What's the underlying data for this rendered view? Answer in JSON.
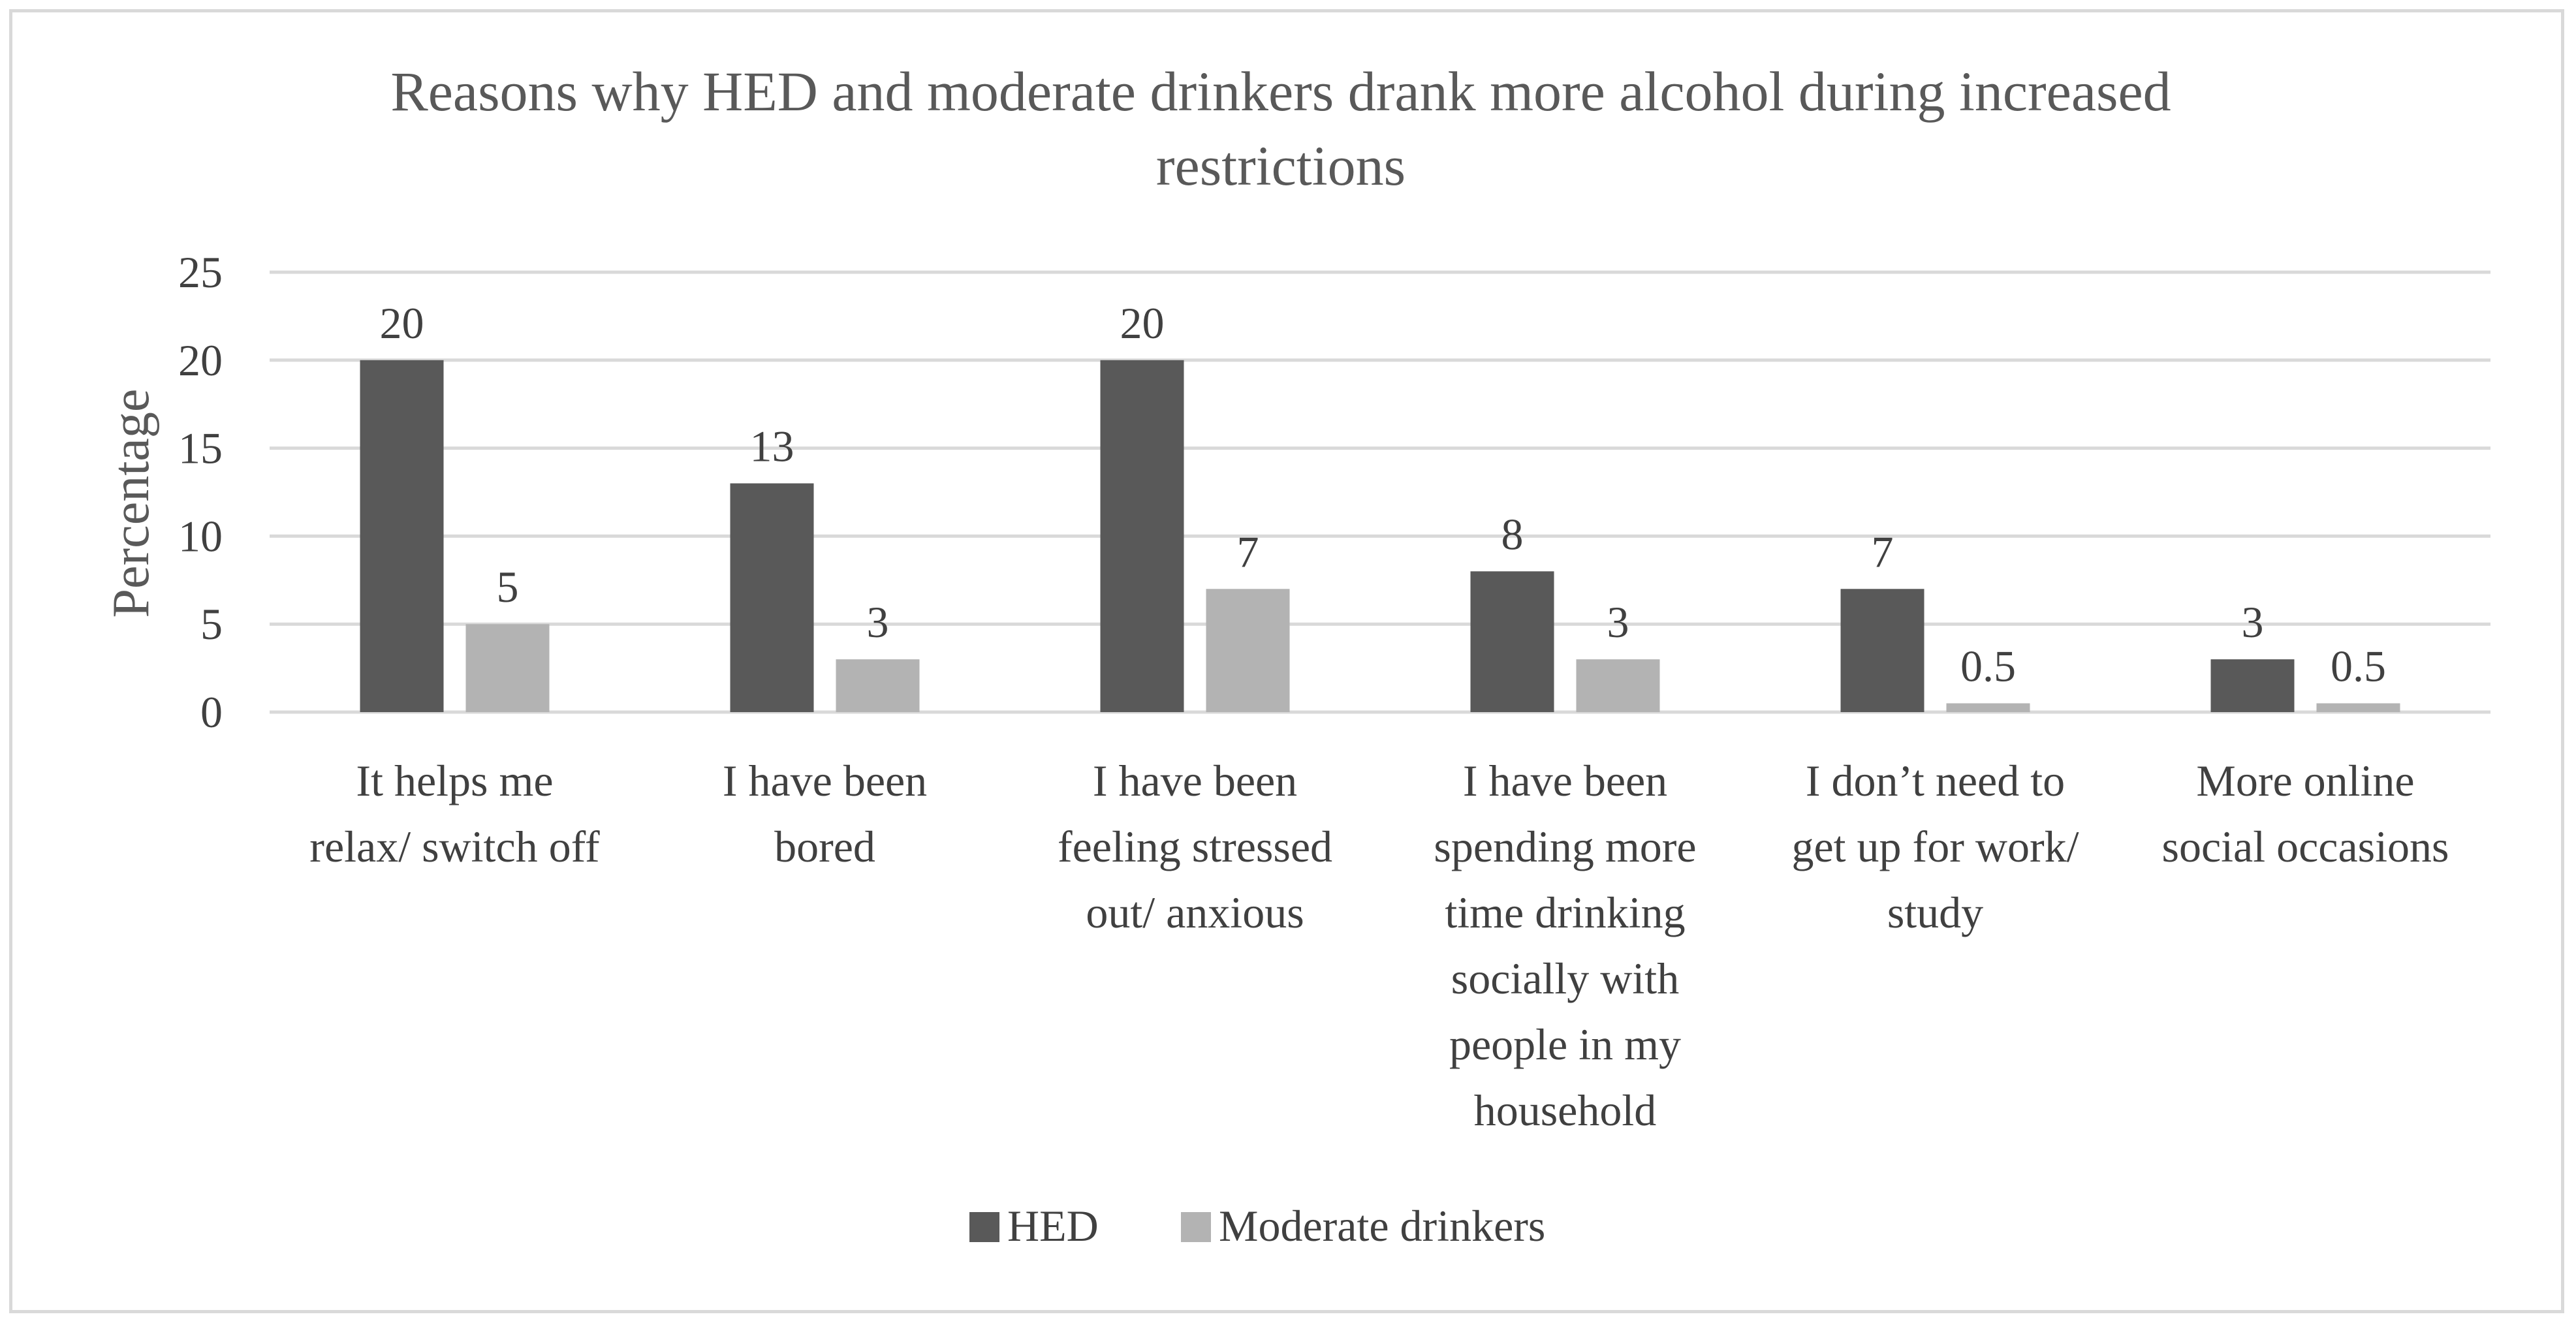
{
  "chart_data": {
    "type": "bar",
    "title": "Reasons why HED and moderate drinkers drank more alcohol during increased restrictions",
    "title_lines": [
      "Reasons why HED and moderate drinkers drank more alcohol during increased",
      "restrictions"
    ],
    "xlabel": "",
    "ylabel": "Percentage",
    "ylim": [
      0,
      25
    ],
    "yticks": [
      0,
      5,
      10,
      15,
      20,
      25
    ],
    "grid": true,
    "legend_position": "bottom",
    "categories": [
      "It helps me relax/ switch off",
      "I have been bored",
      "I have been feeling stressed out/ anxious",
      "I have been spending more time drinking socially with people in my household",
      "I don’t need to get up for work/ study",
      "More online social occasions"
    ],
    "category_lines": [
      [
        "It helps me",
        "relax/ switch off"
      ],
      [
        "I have been",
        "bored"
      ],
      [
        "I have been",
        "feeling stressed",
        "out/ anxious"
      ],
      [
        "I have been",
        "spending more",
        "time drinking",
        "socially with",
        "people in my",
        "household"
      ],
      [
        "I don’t need to",
        "get up for work/",
        "study"
      ],
      [
        "More online",
        "social occasions"
      ]
    ],
    "series": [
      {
        "name": "HED",
        "color": "#595959",
        "values": [
          20,
          13,
          20,
          8,
          7,
          3
        ]
      },
      {
        "name": "Moderate drinkers",
        "color": "#b3b3b3",
        "values": [
          5,
          3,
          7,
          3,
          0.5,
          0.5
        ]
      }
    ]
  }
}
